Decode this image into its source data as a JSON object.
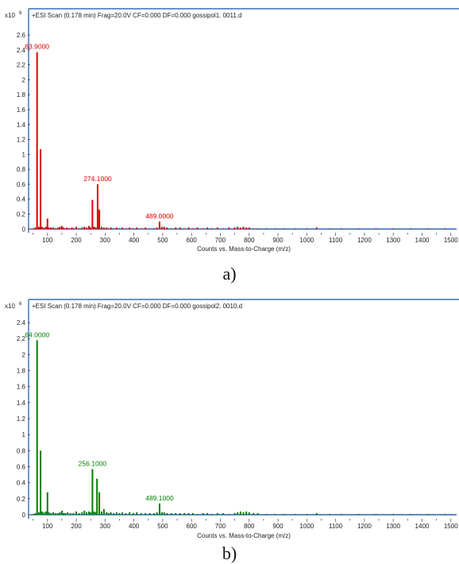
{
  "chart_data": [
    {
      "type": "bar",
      "panel_label": "a)",
      "header": "+ESI Scan (0.178 min) Frag=20.0V CF=0.000 DF=0.000 gossipol1. 0011.d",
      "scale_prefix": "x10",
      "scale_exponent": "6",
      "xlabel": "Counts vs. Mass-to-Charge (m/z)",
      "xlim": [
        40,
        1520
      ],
      "ylim": [
        -0.05,
        2.75
      ],
      "xticks": [
        100,
        200,
        300,
        400,
        500,
        600,
        700,
        800,
        900,
        1000,
        1100,
        1200,
        1300,
        1400,
        1500
      ],
      "yticks": [
        0,
        0.2,
        0.4,
        0.6,
        0.8,
        1,
        1.2,
        1.4,
        1.6,
        1.8,
        2,
        2.2,
        2.4,
        2.6
      ],
      "color": "#e00000",
      "series": [
        {
          "x": [
            52,
            58,
            63.9,
            70,
            76,
            81,
            88,
            95,
            100,
            105,
            112,
            120,
            128,
            136,
            143,
            150,
            155,
            160,
            168,
            176,
            185,
            192,
            200,
            210,
            220,
            228,
            236,
            244,
            249,
            256,
            262,
            268,
            274.1,
            280,
            288,
            296,
            305,
            312,
            320,
            330,
            340,
            350,
            360,
            372,
            385,
            398,
            410,
            425,
            440,
            455,
            470,
            480,
            489,
            497,
            505,
            515,
            530,
            545,
            560,
            575,
            590,
            605,
            620,
            640,
            655,
            670,
            690,
            710,
            730,
            750,
            760,
            770,
            780,
            790,
            800,
            815,
            830,
            860,
            890,
            920,
            960,
            1000,
            1034,
            1080,
            1120,
            1180,
            1240,
            1300,
            1360,
            1420,
            1480
          ],
          "values": [
            0.01,
            0.02,
            2.37,
            0.03,
            1.07,
            0.03,
            0.02,
            0.03,
            0.14,
            0.02,
            0.02,
            0.02,
            0.01,
            0.02,
            0.03,
            0.04,
            0.02,
            0.01,
            0.02,
            0.01,
            0.02,
            0.01,
            0.03,
            0.01,
            0.02,
            0.03,
            0.02,
            0.04,
            0.02,
            0.39,
            0.03,
            0.02,
            0.6,
            0.26,
            0.03,
            0.02,
            0.02,
            0.01,
            0.02,
            0.01,
            0.02,
            0.01,
            0.02,
            0.01,
            0.02,
            0.01,
            0.02,
            0.01,
            0.02,
            0.01,
            0.01,
            0.02,
            0.1,
            0.03,
            0.03,
            0.02,
            0.01,
            0.02,
            0.02,
            0.01,
            0.02,
            0.01,
            0.02,
            0.01,
            0.02,
            0.01,
            0.02,
            0.01,
            0.02,
            0.02,
            0.03,
            0.02,
            0.03,
            0.02,
            0.02,
            0.01,
            0.01,
            0.01,
            0.01,
            0.01,
            0.01,
            0.01,
            0.02,
            0.01,
            0.01,
            0.01,
            0.01,
            0.01,
            0.01,
            0.01,
            0.01
          ]
        }
      ],
      "annotations": [
        {
          "x": 63.9,
          "y": 2.37,
          "text": "63.9000"
        },
        {
          "x": 274.1,
          "y": 0.6,
          "text": "274.1000"
        },
        {
          "x": 489,
          "y": 0.1,
          "text": "489.0000"
        }
      ]
    },
    {
      "type": "bar",
      "panel_label": "b)",
      "header": "+ESI Scan (0.178 min) Frag=20.0V CF=0.000 DF=0.000 gossipol2. 0010.d",
      "scale_prefix": "x10",
      "scale_exponent": "6",
      "xlabel": "Counts vs. Mass-to-Charge (m/z)",
      "xlim": [
        40,
        1520
      ],
      "ylim": [
        -0.05,
        2.5
      ],
      "xticks": [
        100,
        200,
        300,
        400,
        500,
        600,
        700,
        800,
        900,
        1000,
        1100,
        1200,
        1300,
        1400,
        1500
      ],
      "yticks": [
        0,
        0.2,
        0.4,
        0.6,
        0.8,
        1,
        1.2,
        1.4,
        1.6,
        1.8,
        2,
        2.2,
        2.4
      ],
      "color": "#008000",
      "series": [
        {
          "x": [
            52,
            58,
            64,
            70,
            76,
            81,
            88,
            95,
            100,
            105,
            112,
            120,
            128,
            136,
            143,
            150,
            156,
            162,
            170,
            180,
            190,
            200,
            210,
            220,
            228,
            236,
            244,
            250,
            256.1,
            262,
            268,
            272,
            280,
            288,
            296,
            305,
            312,
            320,
            330,
            340,
            350,
            360,
            372,
            385,
            398,
            410,
            425,
            440,
            455,
            470,
            480,
            489.1,
            497,
            505,
            515,
            530,
            545,
            560,
            575,
            590,
            605,
            620,
            640,
            655,
            670,
            690,
            710,
            730,
            750,
            760,
            770,
            780,
            790,
            800,
            815,
            830,
            860,
            890,
            920,
            960,
            1000,
            1034,
            1080,
            1120,
            1180,
            1240,
            1300,
            1360,
            1420,
            1480
          ],
          "values": [
            0.01,
            0.02,
            2.18,
            0.03,
            0.8,
            0.04,
            0.03,
            0.04,
            0.28,
            0.03,
            0.02,
            0.03,
            0.02,
            0.02,
            0.03,
            0.05,
            0.02,
            0.02,
            0.03,
            0.02,
            0.02,
            0.04,
            0.02,
            0.03,
            0.05,
            0.03,
            0.04,
            0.03,
            0.57,
            0.04,
            0.03,
            0.45,
            0.28,
            0.04,
            0.07,
            0.03,
            0.02,
            0.03,
            0.02,
            0.03,
            0.02,
            0.03,
            0.02,
            0.03,
            0.02,
            0.03,
            0.02,
            0.02,
            0.02,
            0.02,
            0.03,
            0.14,
            0.03,
            0.03,
            0.02,
            0.02,
            0.02,
            0.02,
            0.02,
            0.02,
            0.02,
            0.01,
            0.02,
            0.02,
            0.01,
            0.02,
            0.02,
            0.01,
            0.02,
            0.03,
            0.04,
            0.03,
            0.04,
            0.03,
            0.02,
            0.02,
            0.01,
            0.01,
            0.01,
            0.01,
            0.01,
            0.02,
            0.01,
            0.01,
            0.01,
            0.01,
            0.01,
            0.01,
            0.01,
            0.01
          ]
        }
      ],
      "annotations": [
        {
          "x": 64,
          "y": 2.18,
          "text": "64.0000"
        },
        {
          "x": 256.1,
          "y": 0.57,
          "text": "256.1000"
        },
        {
          "x": 489.1,
          "y": 0.14,
          "text": "489.1000"
        }
      ]
    }
  ]
}
